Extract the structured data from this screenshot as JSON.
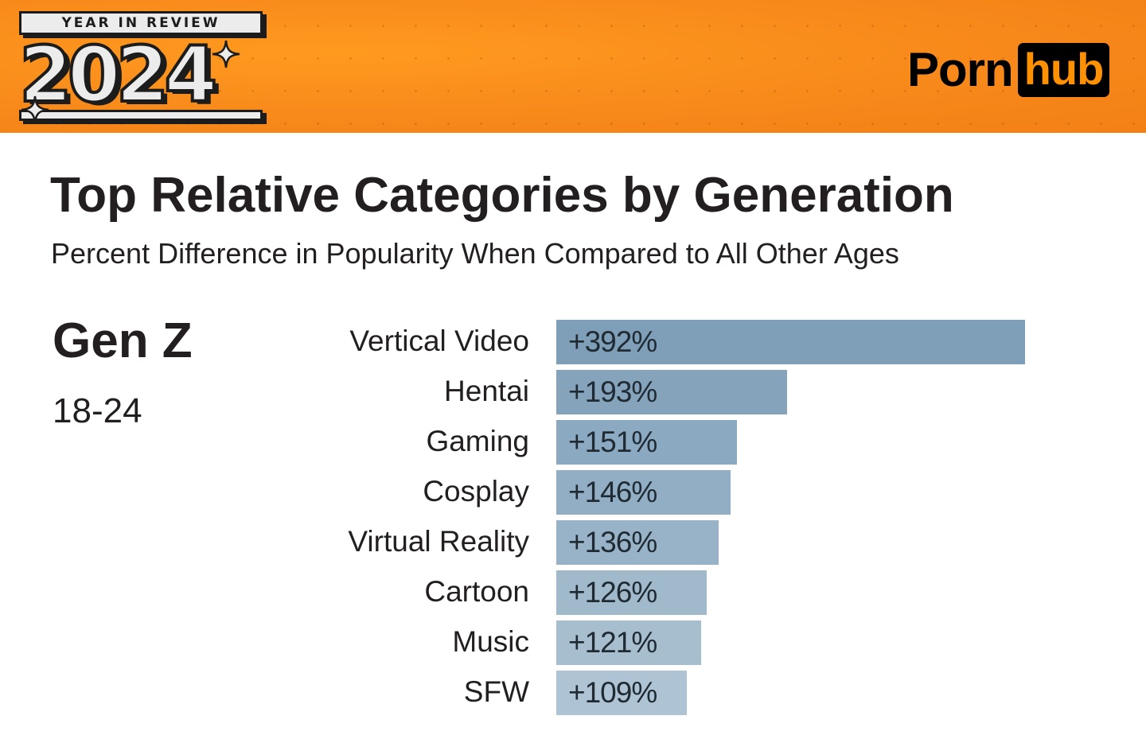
{
  "banner": {
    "badge_top": "YEAR IN REVIEW",
    "badge_year": "2024",
    "logo_left": "Porn",
    "logo_right": "hub",
    "background_color": "#f7881a"
  },
  "header": {
    "title": "Top Relative Categories by Generation",
    "subtitle": "Percent Difference in Popularity When Compared to All Other Ages"
  },
  "generation": {
    "name": "Gen Z",
    "age_range": "18-24"
  },
  "chart_data": {
    "type": "bar",
    "orientation": "horizontal",
    "title": "Top Relative Categories by Generation",
    "subtitle": "Percent Difference in Popularity When Compared to All Other Ages",
    "group": "Gen Z (18-24)",
    "categories": [
      "Vertical Video",
      "Hentai",
      "Gaming",
      "Cosplay",
      "Virtual Reality",
      "Cartoon",
      "Music",
      "SFW"
    ],
    "values": [
      392,
      193,
      151,
      146,
      136,
      126,
      121,
      109
    ],
    "labels": [
      "+392%",
      "+193%",
      "+151%",
      "+146%",
      "+136%",
      "+126%",
      "+121%",
      "+109%"
    ],
    "colors": [
      "#7f9fb8",
      "#85a4bc",
      "#8ba9c0",
      "#92aec4",
      "#98b3c7",
      "#a0b9cb",
      "#a7becf",
      "#aec3d3"
    ],
    "xlabel": "",
    "ylabel": "",
    "xlim": [
      0,
      392
    ],
    "grid": false,
    "legend": "none"
  }
}
